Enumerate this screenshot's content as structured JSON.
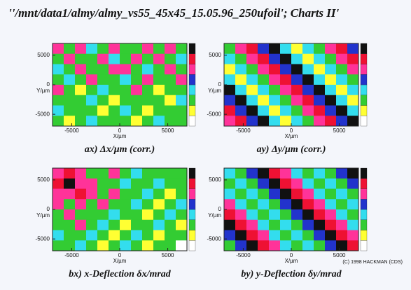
{
  "title": "''/mnt/data1/almy/almy_vs55_45x45_15.05.96_250ufoil'; Charts II'",
  "copyright": "(C) 1998 HACKMAN (CDS)",
  "chart_data": [
    {
      "type": "heatmap",
      "caption": "ax) Δx/µm (corr.)",
      "xlabel": "X/µm",
      "ylabel": "Y/µm",
      "xlim": [
        -7000,
        7000
      ],
      "ylim": [
        -7000,
        7000
      ],
      "xticks": [
        -5000,
        0,
        5000
      ],
      "yticks": [
        5000,
        0,
        -5000
      ],
      "zlim": [
        0,
        8
      ],
      "colors": [
        "#ffffff",
        "#ffff33",
        "#33cc33",
        "#33ddee",
        "#2233cc",
        "#ff3399",
        "#ee1133",
        "#111111"
      ],
      "z": [
        [
          5,
          2,
          5,
          3,
          2,
          5,
          2,
          2,
          5,
          2,
          5,
          2
        ],
        [
          2,
          5,
          2,
          2,
          5,
          3,
          2,
          5,
          2,
          5,
          2,
          3
        ],
        [
          3,
          2,
          5,
          2,
          2,
          5,
          5,
          2,
          3,
          2,
          5,
          2
        ],
        [
          2,
          3,
          2,
          5,
          2,
          2,
          3,
          2,
          5,
          2,
          2,
          5
        ],
        [
          5,
          2,
          1,
          2,
          3,
          2,
          2,
          5,
          2,
          1,
          2,
          2
        ],
        [
          2,
          2,
          2,
          3,
          2,
          1,
          2,
          2,
          2,
          2,
          1,
          3
        ],
        [
          3,
          2,
          2,
          2,
          1,
          2,
          3,
          2,
          1,
          2,
          2,
          2
        ],
        [
          2,
          1,
          2,
          3,
          2,
          2,
          2,
          1,
          2,
          3,
          2,
          2
        ]
      ]
    },
    {
      "type": "heatmap",
      "caption": "ay) Δy/µm (corr.)",
      "xlabel": "X/µm",
      "ylabel": "Y/µm",
      "xlim": [
        -7000,
        7000
      ],
      "ylim": [
        -7000,
        7000
      ],
      "xticks": [
        -5000,
        0,
        5000
      ],
      "yticks": [
        5000,
        0,
        -5000
      ],
      "zlim": [
        0,
        8
      ],
      "colors": [
        "#ffffff",
        "#ffff33",
        "#33cc33",
        "#33ddee",
        "#2233cc",
        "#ff3399",
        "#ee1133",
        "#111111"
      ],
      "z": [
        [
          2,
          5,
          6,
          4,
          7,
          3,
          1,
          3,
          2,
          5,
          6,
          4
        ],
        [
          3,
          2,
          5,
          6,
          4,
          7,
          3,
          1,
          3,
          2,
          5,
          6
        ],
        [
          1,
          3,
          2,
          5,
          6,
          4,
          7,
          3,
          1,
          3,
          2,
          5
        ],
        [
          3,
          1,
          3,
          2,
          5,
          6,
          4,
          7,
          3,
          1,
          3,
          2
        ],
        [
          7,
          3,
          1,
          3,
          2,
          5,
          6,
          4,
          7,
          3,
          1,
          3
        ],
        [
          4,
          7,
          3,
          1,
          3,
          2,
          5,
          6,
          4,
          7,
          3,
          1
        ],
        [
          6,
          4,
          7,
          3,
          1,
          3,
          2,
          5,
          6,
          4,
          7,
          3
        ],
        [
          5,
          6,
          4,
          7,
          3,
          1,
          3,
          2,
          5,
          6,
          4,
          7
        ]
      ]
    },
    {
      "type": "heatmap",
      "caption": "bx) x-Deflection δx/mrad",
      "xlabel": "X/µm",
      "ylabel": "Y/µm",
      "xlim": [
        -7000,
        7000
      ],
      "ylim": [
        -7000,
        7000
      ],
      "xticks": [
        -5000,
        0,
        5000
      ],
      "yticks": [
        5000,
        0,
        -5000
      ],
      "zlim": [
        0,
        8
      ],
      "colors": [
        "#ffffff",
        "#ffff33",
        "#33cc33",
        "#33ddee",
        "#2233cc",
        "#ff3399",
        "#ee1133",
        "#111111"
      ],
      "z": [
        [
          5,
          6,
          5,
          2,
          2,
          5,
          2,
          3,
          2,
          2,
          2,
          2
        ],
        [
          6,
          7,
          5,
          5,
          2,
          2,
          3,
          2,
          2,
          3,
          2,
          2
        ],
        [
          5,
          5,
          6,
          5,
          2,
          5,
          2,
          2,
          3,
          2,
          1,
          2
        ],
        [
          5,
          2,
          5,
          2,
          5,
          2,
          2,
          3,
          2,
          1,
          2,
          3
        ],
        [
          2,
          5,
          2,
          2,
          2,
          3,
          2,
          2,
          1,
          2,
          3,
          2
        ],
        [
          2,
          2,
          5,
          2,
          3,
          2,
          1,
          2,
          2,
          3,
          2,
          1
        ],
        [
          3,
          2,
          2,
          3,
          2,
          1,
          2,
          3,
          2,
          1,
          2,
          2
        ],
        [
          2,
          2,
          3,
          2,
          1,
          2,
          3,
          2,
          1,
          2,
          2,
          0
        ]
      ]
    },
    {
      "type": "heatmap",
      "caption": "by) y-Deflection δy/mrad",
      "xlabel": "X/µm",
      "ylabel": "Y/µm",
      "xlim": [
        -7000,
        7000
      ],
      "ylim": [
        -7000,
        7000
      ],
      "xticks": [
        -5000,
        0,
        5000
      ],
      "yticks": [
        5000,
        0,
        -5000
      ],
      "zlim": [
        0,
        8
      ],
      "colors": [
        "#ffffff",
        "#ffff33",
        "#33cc33",
        "#33ddee",
        "#2233cc",
        "#ff3399",
        "#ee1133",
        "#111111"
      ],
      "z": [
        [
          3,
          2,
          4,
          7,
          6,
          5,
          3,
          2,
          3,
          2,
          4,
          7
        ],
        [
          2,
          3,
          2,
          4,
          7,
          6,
          5,
          3,
          2,
          3,
          2,
          4
        ],
        [
          3,
          2,
          3,
          2,
          4,
          7,
          6,
          5,
          3,
          2,
          3,
          2
        ],
        [
          5,
          3,
          2,
          3,
          2,
          4,
          7,
          6,
          5,
          3,
          2,
          3
        ],
        [
          6,
          5,
          3,
          2,
          3,
          2,
          4,
          7,
          6,
          5,
          3,
          2
        ],
        [
          7,
          6,
          5,
          3,
          2,
          3,
          2,
          4,
          7,
          6,
          5,
          3
        ],
        [
          4,
          7,
          6,
          5,
          3,
          2,
          3,
          2,
          4,
          7,
          6,
          5
        ],
        [
          2,
          4,
          7,
          6,
          5,
          3,
          2,
          3,
          2,
          4,
          7,
          6
        ]
      ]
    }
  ]
}
